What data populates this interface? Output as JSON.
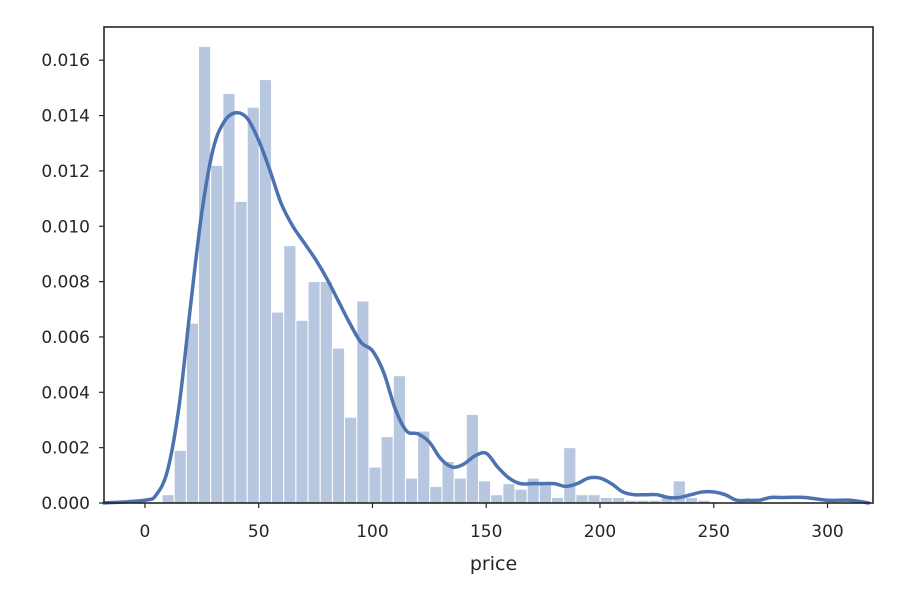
{
  "chart_data": {
    "type": "bar",
    "title": "",
    "xlabel": "price",
    "ylabel": "",
    "xlim": [
      -18,
      320
    ],
    "ylim": [
      0,
      0.0172
    ],
    "xticks": [
      0,
      50,
      100,
      150,
      200,
      250,
      300
    ],
    "yticks": [
      "0.000",
      "0.002",
      "0.004",
      "0.006",
      "0.008",
      "0.010",
      "0.012",
      "0.014",
      "0.016"
    ],
    "grid": false,
    "legend": "none",
    "colors": {
      "bars": "#4C72B0",
      "kde": "#4C72B0",
      "axes": "#262626"
    },
    "histogram": {
      "bin_start": 7.5,
      "bin_width": 5.35,
      "densities": [
        0.0003,
        0.0019,
        0.0065,
        0.0165,
        0.0122,
        0.0148,
        0.0109,
        0.0143,
        0.0153,
        0.0069,
        0.0093,
        0.0066,
        0.008,
        0.008,
        0.0056,
        0.0031,
        0.0073,
        0.0013,
        0.0024,
        0.0046,
        0.0009,
        0.0026,
        0.0006,
        0.0015,
        0.0009,
        0.0032,
        0.0008,
        0.0003,
        0.0007,
        0.0005,
        0.0009,
        0.0007,
        0.0002,
        0.002,
        0.0003,
        0.0003,
        0.0002,
        0.0002,
        0.0001,
        0.0001,
        0.0001,
        0.0002,
        0.0008,
        0.0002,
        0.0001
      ]
    },
    "kde": {
      "x": [
        -18,
        0,
        5,
        10,
        15,
        20,
        25,
        30,
        35,
        40,
        45,
        50,
        55,
        60,
        65,
        70,
        75,
        80,
        85,
        90,
        95,
        100,
        105,
        110,
        115,
        120,
        125,
        130,
        135,
        140,
        145,
        150,
        155,
        160,
        165,
        170,
        175,
        180,
        185,
        190,
        195,
        200,
        205,
        210,
        215,
        220,
        225,
        230,
        235,
        240,
        245,
        250,
        255,
        260,
        265,
        270,
        275,
        280,
        290,
        300,
        310,
        318
      ],
      "y": [
        0.0,
        0.0001,
        0.0003,
        0.0012,
        0.0035,
        0.0071,
        0.0105,
        0.0128,
        0.0138,
        0.0141,
        0.0139,
        0.0131,
        0.012,
        0.0108,
        0.01,
        0.0094,
        0.0088,
        0.0081,
        0.0073,
        0.0065,
        0.0058,
        0.0055,
        0.0047,
        0.0034,
        0.0026,
        0.0025,
        0.0022,
        0.0016,
        0.0013,
        0.0014,
        0.0017,
        0.0018,
        0.0013,
        0.0009,
        0.0007,
        0.0007,
        0.0007,
        0.0007,
        0.0006,
        0.0007,
        0.0009,
        0.0009,
        0.0007,
        0.0004,
        0.0003,
        0.0003,
        0.0003,
        0.0002,
        0.0002,
        0.0003,
        0.0004,
        0.0004,
        0.0003,
        0.0001,
        0.0001,
        0.0001,
        0.0002,
        0.0002,
        0.0002,
        0.0001,
        0.0001,
        0.0
      ]
    }
  }
}
